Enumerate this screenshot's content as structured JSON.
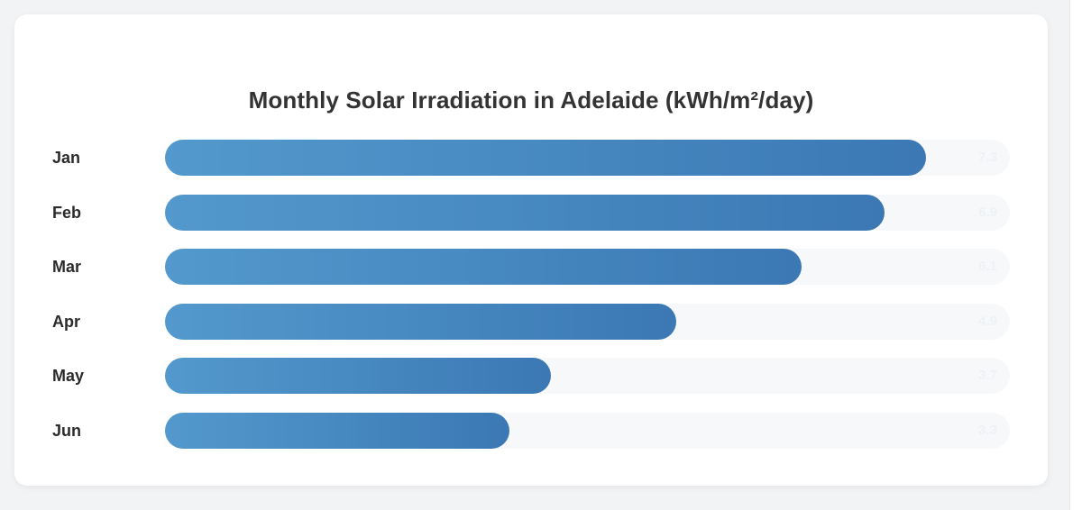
{
  "chart_data": {
    "type": "bar",
    "orientation": "horizontal",
    "title": "Monthly Solar Irradiation in Adelaide (kWh/m²/day)",
    "categories": [
      "Jan",
      "Feb",
      "Mar",
      "Apr",
      "May",
      "Jun"
    ],
    "values": [
      7.3,
      6.9,
      6.1,
      4.9,
      3.7,
      3.3
    ],
    "value_labels": [
      "7.3",
      "6.9",
      "6.1",
      "4.9",
      "3.7",
      "3.3"
    ],
    "xlim": [
      0,
      8.1
    ],
    "xlabel": "",
    "ylabel": "",
    "grid": false,
    "colors": {
      "bar_start": "#5399cd",
      "bar_end": "#3b78b4",
      "track": "#f6f8fa",
      "value_text": "#eef1f5"
    }
  }
}
